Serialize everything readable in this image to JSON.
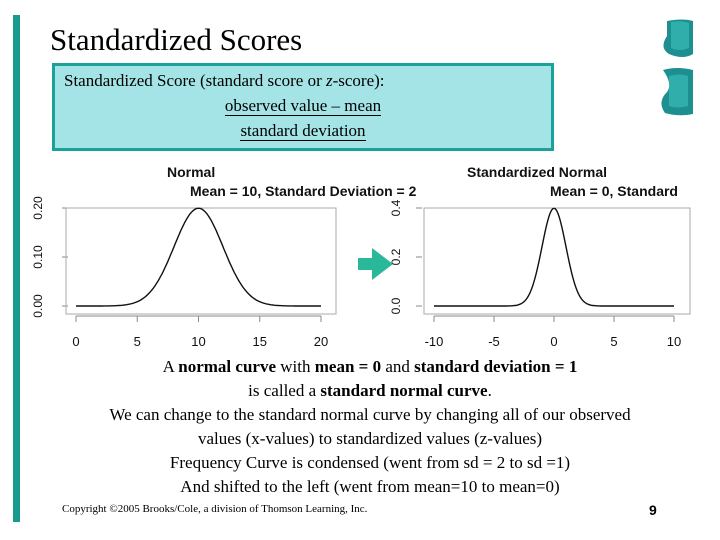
{
  "slide": {
    "title": "Standardized Scores",
    "page_number": "9",
    "copyright": "Copyright ©2005 Brooks/Cole, a division of Thomson Learning, Inc."
  },
  "definition": {
    "lead_before": "Standardized Score (standard score or ",
    "lead_z": "z",
    "lead_after": "-score):",
    "numerator": "observed value – mean",
    "denominator": "standard deviation"
  },
  "body": {
    "line1_a": "A ",
    "line1_b": "normal curve",
    "line1_c": " with ",
    "line1_d": "mean = 0",
    "line1_e": " and ",
    "line1_f": "standard deviation = 1",
    "line2_a": "is called a ",
    "line2_b": "standard normal curve",
    "line2_c": ".",
    "line3": "We can change to the standard normal curve by changing all of our observed",
    "line4": "values (x-values) to standardized values (z-values)",
    "line5": "Frequency Curve is condensed (went from sd = 2 to sd =1)",
    "line6": "And shifted to the left (went from mean=10 to mean=0)"
  },
  "colors": {
    "accent_bar": "#1a9a8e",
    "definition_fill": "#a5e4e6",
    "definition_border": "#19a19a",
    "arrow": "#2ab89a"
  },
  "chart_data": [
    {
      "type": "line",
      "title": "Normal",
      "subtitle": "Mean = 10, Standard Deviation = 2",
      "distribution": {
        "mean": 10,
        "sd": 2
      },
      "xlim": [
        0,
        20
      ],
      "ylim": [
        0,
        0.2
      ],
      "xticks": [
        0,
        5,
        10,
        15,
        20
      ],
      "yticks": [
        "0.00",
        "0.10",
        "0.20"
      ]
    },
    {
      "type": "line",
      "title": "Standardized Normal",
      "subtitle": "Mean = 0, Standard",
      "distribution": {
        "mean": 0,
        "sd": 1
      },
      "xlim": [
        -10,
        10
      ],
      "ylim": [
        0,
        0.4
      ],
      "xticks": [
        -10,
        -5,
        0,
        5,
        10
      ],
      "yticks": [
        "0.0",
        "0.2",
        "0.4"
      ]
    }
  ]
}
